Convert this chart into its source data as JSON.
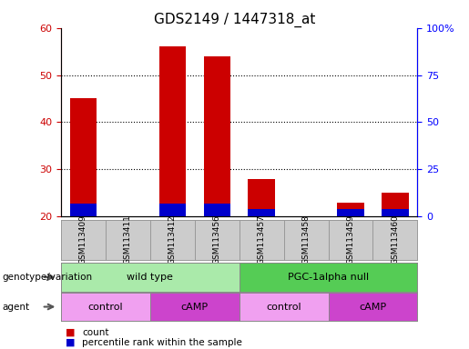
{
  "title": "GDS2149 / 1447318_at",
  "samples": [
    "GSM113409",
    "GSM113411",
    "GSM113412",
    "GSM113456",
    "GSM113457",
    "GSM113458",
    "GSM113459",
    "GSM113460"
  ],
  "count_values": [
    45,
    20,
    56,
    54,
    28,
    20,
    23,
    25
  ],
  "percentile_values": [
    7,
    0,
    7,
    7,
    4,
    0,
    4,
    4
  ],
  "bar_bottom": 20,
  "ylim_left": [
    20,
    60
  ],
  "ylim_right": [
    0,
    100
  ],
  "yticks_left": [
    20,
    30,
    40,
    50,
    60
  ],
  "yticks_right": [
    0,
    25,
    50,
    75,
    100
  ],
  "ytick_labels_right": [
    "0",
    "25",
    "50",
    "75",
    "100%"
  ],
  "red_color": "#cc0000",
  "blue_color": "#0000cc",
  "bar_width": 0.6,
  "genotype_groups": [
    {
      "label": "wild type",
      "start": 0,
      "end": 4,
      "color": "#aaeaaa"
    },
    {
      "label": "PGC-1alpha null",
      "start": 4,
      "end": 8,
      "color": "#55cc55"
    }
  ],
  "agent_groups": [
    {
      "label": "control",
      "start": 0,
      "end": 2,
      "color": "#f0a0f0"
    },
    {
      "label": "cAMP",
      "start": 2,
      "end": 4,
      "color": "#cc44cc"
    },
    {
      "label": "control",
      "start": 4,
      "end": 6,
      "color": "#f0a0f0"
    },
    {
      "label": "cAMP",
      "start": 6,
      "end": 8,
      "color": "#cc44cc"
    }
  ],
  "legend_count_label": "count",
  "legend_pct_label": "percentile rank within the sample",
  "xlabel_genotype": "genotype/variation",
  "xlabel_agent": "agent",
  "sample_label_row_color": "#cccccc",
  "sample_label_row_border": "#999999"
}
